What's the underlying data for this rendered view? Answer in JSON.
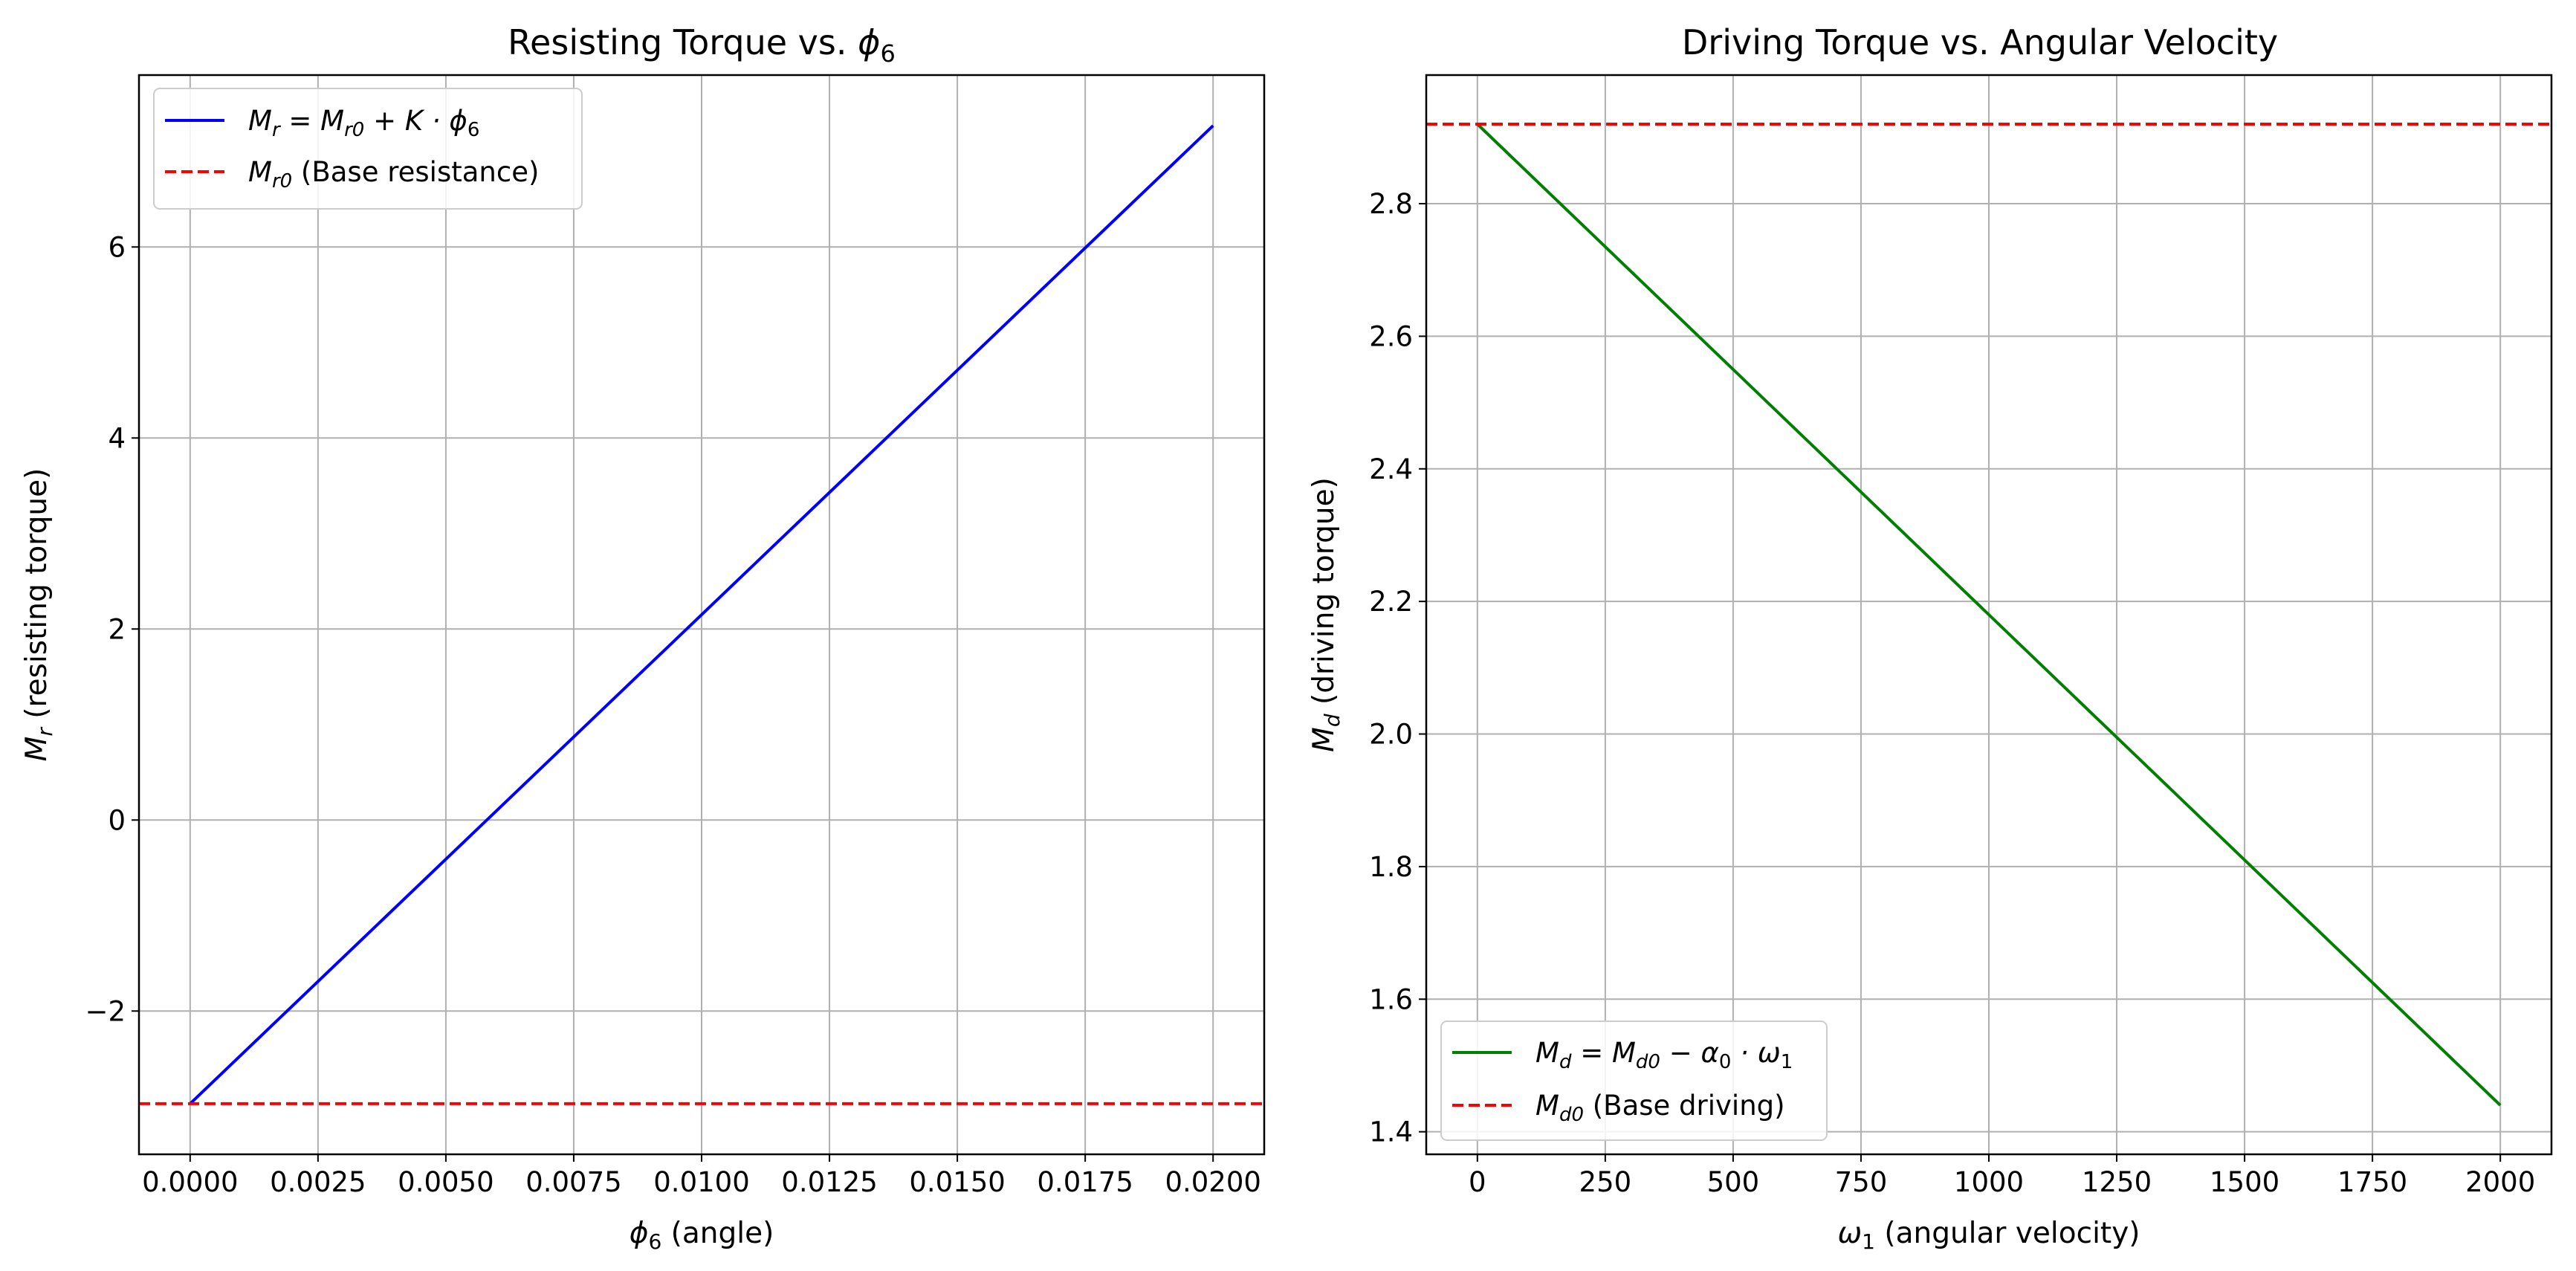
{
  "chart_data": [
    {
      "type": "line",
      "title_text": "Resisting Torque vs. ",
      "title_math": "ϕ",
      "title_sub": "6",
      "xlabel_math": "ϕ",
      "xlabel_sub": "6",
      "xlabel_text": " (angle)",
      "ylabel_math": "M",
      "ylabel_sub": "r",
      "ylabel_text": " (resisting torque)",
      "xlim": [
        -0.001,
        0.021
      ],
      "ylim": [
        -3.5,
        7.8
      ],
      "xticks": [
        0.0,
        0.0025,
        0.005,
        0.0075,
        0.01,
        0.0125,
        0.015,
        0.0175,
        0.02
      ],
      "xtick_labels": [
        "0.0000",
        "0.0025",
        "0.0050",
        "0.0075",
        "0.0100",
        "0.0125",
        "0.0150",
        "0.0175",
        "0.0200"
      ],
      "yticks": [
        -2,
        0,
        2,
        4,
        6
      ],
      "ytick_labels": [
        "−2",
        "0",
        "2",
        "4",
        "6"
      ],
      "grid": true,
      "legend_position": "upper-left",
      "series": [
        {
          "name_text": "M",
          "name_sub": "r",
          "name_rest": " = M",
          "name_sub2": "r0",
          "name_rest2": " + K · ϕ",
          "name_sub3": "6",
          "style": "solid",
          "color": "#0000ff",
          "x": [
            0.0,
            0.02
          ],
          "y": [
            -2.97,
            7.27
          ]
        },
        {
          "name_text": "M",
          "name_sub": "r0",
          "name_rest": " (Base resistance)",
          "style": "dashed",
          "color": "#ff0000",
          "hline": -2.97
        }
      ]
    },
    {
      "type": "line",
      "title_text": "Driving Torque vs. Angular Velocity",
      "xlabel_math": "ω",
      "xlabel_sub": "1",
      "xlabel_text": " (angular velocity)",
      "ylabel_math": "M",
      "ylabel_sub": "d",
      "ylabel_text": " (driving torque)",
      "xlim": [
        -100,
        2100
      ],
      "ylim": [
        1.366,
        2.994
      ],
      "xticks": [
        0,
        250,
        500,
        750,
        1000,
        1250,
        1500,
        1750,
        2000
      ],
      "xtick_labels": [
        "0",
        "250",
        "500",
        "750",
        "1000",
        "1250",
        "1500",
        "1750",
        "2000"
      ],
      "yticks": [
        1.4,
        1.6,
        1.8,
        2.0,
        2.2,
        2.4,
        2.6,
        2.8
      ],
      "ytick_labels": [
        "1.4",
        "1.6",
        "1.8",
        "2.0",
        "2.2",
        "2.4",
        "2.6",
        "2.8"
      ],
      "grid": true,
      "legend_position": "lower-left",
      "series": [
        {
          "name_text": "M",
          "name_sub": "d",
          "name_rest": " = M",
          "name_sub2": "d0",
          "name_rest2": " − α",
          "name_sub3": "0",
          "name_rest3": " · ω",
          "name_sub4": "1",
          "style": "solid",
          "color": "#008000",
          "x": [
            0,
            2000
          ],
          "y": [
            2.92,
            1.44
          ]
        },
        {
          "name_text": "M",
          "name_sub": "d0",
          "name_rest": " (Base driving)",
          "style": "dashed",
          "color": "#ff0000",
          "hline": 2.92
        }
      ]
    }
  ]
}
